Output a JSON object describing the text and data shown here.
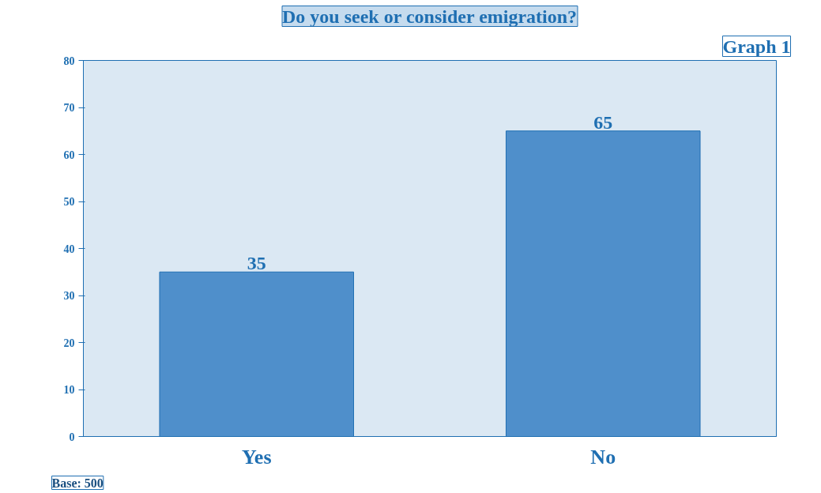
{
  "chart_data": {
    "type": "bar",
    "title": "Do you seek or consider emigration?",
    "categories": [
      "Yes",
      "No"
    ],
    "values": [
      35,
      65
    ],
    "color": "#4f8fcb",
    "ylim": [
      0,
      80
    ],
    "yticks": [
      0,
      10,
      20,
      30,
      40,
      50,
      60,
      70,
      80
    ],
    "grid": false,
    "data_labels": true,
    "annotations": [
      "Graph 1",
      "Base: 500"
    ]
  }
}
